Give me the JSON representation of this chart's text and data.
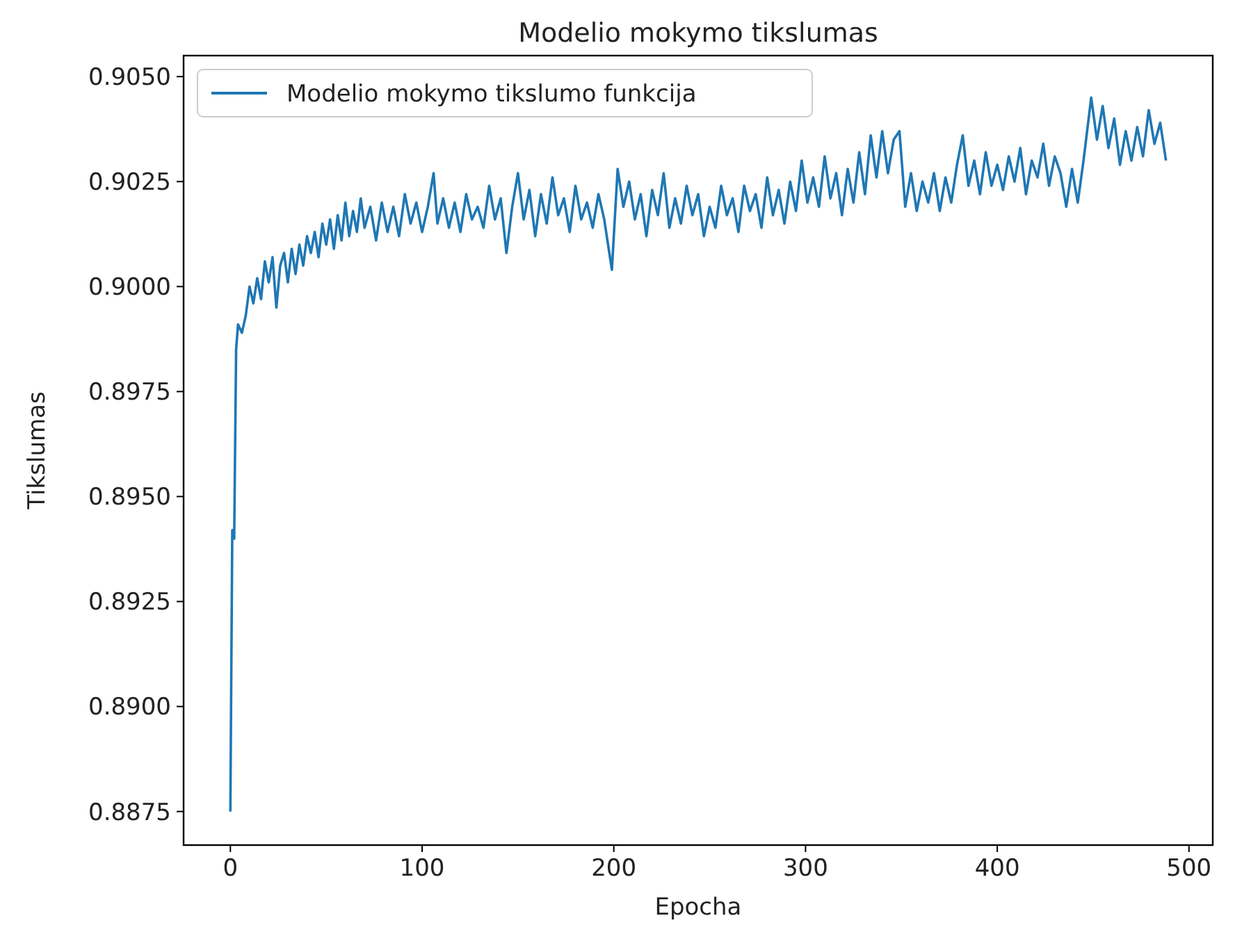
{
  "chart_data": {
    "type": "line",
    "title": "Modelio mokymo tikslumas",
    "xlabel": "Epocha",
    "ylabel": "Tikslumas",
    "legend": "top left",
    "grid": false,
    "xlim": [
      -24.4,
      512.4
    ],
    "xticks": [
      0,
      100,
      200,
      300,
      400,
      500
    ],
    "ylim": [
      0.8867,
      0.9055
    ],
    "yticks": [
      {
        "value": 0.8875,
        "label": "0.8875"
      },
      {
        "value": 0.89,
        "label": "0.8900"
      },
      {
        "value": 0.8925,
        "label": "0.8925"
      },
      {
        "value": 0.895,
        "label": "0.8950"
      },
      {
        "value": 0.8975,
        "label": "0.8975"
      },
      {
        "value": 0.9,
        "label": "0.9000"
      },
      {
        "value": 0.9025,
        "label": "0.9025"
      },
      {
        "value": 0.905,
        "label": "0.9050"
      }
    ],
    "series": [
      {
        "name": "Modelio mokymo tikslumo funkcija",
        "color": "#1f77b4",
        "x": [
          0,
          1,
          2,
          3,
          4,
          6,
          8,
          10,
          12,
          14,
          16,
          18,
          20,
          22,
          24,
          26,
          28,
          30,
          32,
          34,
          36,
          38,
          40,
          42,
          44,
          46,
          48,
          50,
          52,
          54,
          56,
          58,
          60,
          62,
          64,
          66,
          68,
          70,
          73,
          76,
          79,
          82,
          85,
          88,
          91,
          94,
          97,
          100,
          103,
          106,
          108,
          111,
          114,
          117,
          120,
          123,
          126,
          129,
          132,
          135,
          138,
          141,
          144,
          147,
          150,
          153,
          156,
          159,
          162,
          165,
          168,
          171,
          174,
          177,
          180,
          183,
          186,
          189,
          192,
          195,
          199,
          202,
          205,
          208,
          211,
          214,
          217,
          220,
          223,
          226,
          229,
          232,
          235,
          238,
          241,
          244,
          247,
          250,
          253,
          256,
          259,
          262,
          265,
          268,
          271,
          274,
          277,
          280,
          283,
          286,
          289,
          292,
          295,
          298,
          301,
          304,
          307,
          310,
          313,
          316,
          319,
          322,
          325,
          328,
          331,
          334,
          337,
          340,
          343,
          346,
          349,
          352,
          355,
          358,
          361,
          364,
          367,
          370,
          373,
          376,
          379,
          382,
          385,
          388,
          391,
          394,
          397,
          400,
          403,
          406,
          409,
          412,
          415,
          418,
          421,
          424,
          427,
          430,
          433,
          436,
          439,
          442,
          445,
          449,
          452,
          455,
          458,
          461,
          464,
          467,
          470,
          473,
          476,
          479,
          482,
          485,
          488
        ],
        "values": [
          0.8875,
          0.8942,
          0.894,
          0.8985,
          0.8991,
          0.8989,
          0.8993,
          0.9,
          0.8996,
          0.9002,
          0.8997,
          0.9006,
          0.9001,
          0.9007,
          0.8995,
          0.9005,
          0.9008,
          0.9001,
          0.9009,
          0.9003,
          0.901,
          0.9005,
          0.9012,
          0.9008,
          0.9013,
          0.9007,
          0.9015,
          0.901,
          0.9016,
          0.9009,
          0.9017,
          0.9011,
          0.902,
          0.9012,
          0.9018,
          0.9013,
          0.9021,
          0.9014,
          0.9019,
          0.9011,
          0.902,
          0.9013,
          0.9019,
          0.9012,
          0.9022,
          0.9015,
          0.902,
          0.9013,
          0.9019,
          0.9027,
          0.9015,
          0.9021,
          0.9014,
          0.902,
          0.9013,
          0.9022,
          0.9016,
          0.9019,
          0.9014,
          0.9024,
          0.9016,
          0.9021,
          0.9008,
          0.9019,
          0.9027,
          0.9016,
          0.9023,
          0.9012,
          0.9022,
          0.9015,
          0.9026,
          0.9017,
          0.9021,
          0.9013,
          0.9024,
          0.9016,
          0.902,
          0.9014,
          0.9022,
          0.9016,
          0.9004,
          0.9028,
          0.9019,
          0.9025,
          0.9016,
          0.9022,
          0.9012,
          0.9023,
          0.9017,
          0.9027,
          0.9014,
          0.9021,
          0.9015,
          0.9024,
          0.9017,
          0.9022,
          0.9012,
          0.9019,
          0.9014,
          0.9024,
          0.9017,
          0.9021,
          0.9013,
          0.9024,
          0.9018,
          0.9022,
          0.9014,
          0.9026,
          0.9017,
          0.9023,
          0.9015,
          0.9025,
          0.9018,
          0.903,
          0.902,
          0.9026,
          0.9019,
          0.9031,
          0.9021,
          0.9027,
          0.9017,
          0.9028,
          0.902,
          0.9032,
          0.9022,
          0.9036,
          0.9026,
          0.9037,
          0.9027,
          0.9035,
          0.9037,
          0.9019,
          0.9027,
          0.9018,
          0.9025,
          0.902,
          0.9027,
          0.9018,
          0.9026,
          0.902,
          0.9029,
          0.9036,
          0.9024,
          0.903,
          0.9022,
          0.9032,
          0.9024,
          0.9029,
          0.9023,
          0.9031,
          0.9025,
          0.9033,
          0.9022,
          0.903,
          0.9026,
          0.9034,
          0.9024,
          0.9031,
          0.9027,
          0.9019,
          0.9028,
          0.902,
          0.903,
          0.9045,
          0.9035,
          0.9043,
          0.9033,
          0.904,
          0.9029,
          0.9037,
          0.903,
          0.9038,
          0.9031,
          0.9042,
          0.9034,
          0.9039,
          0.903
        ]
      }
    ]
  }
}
